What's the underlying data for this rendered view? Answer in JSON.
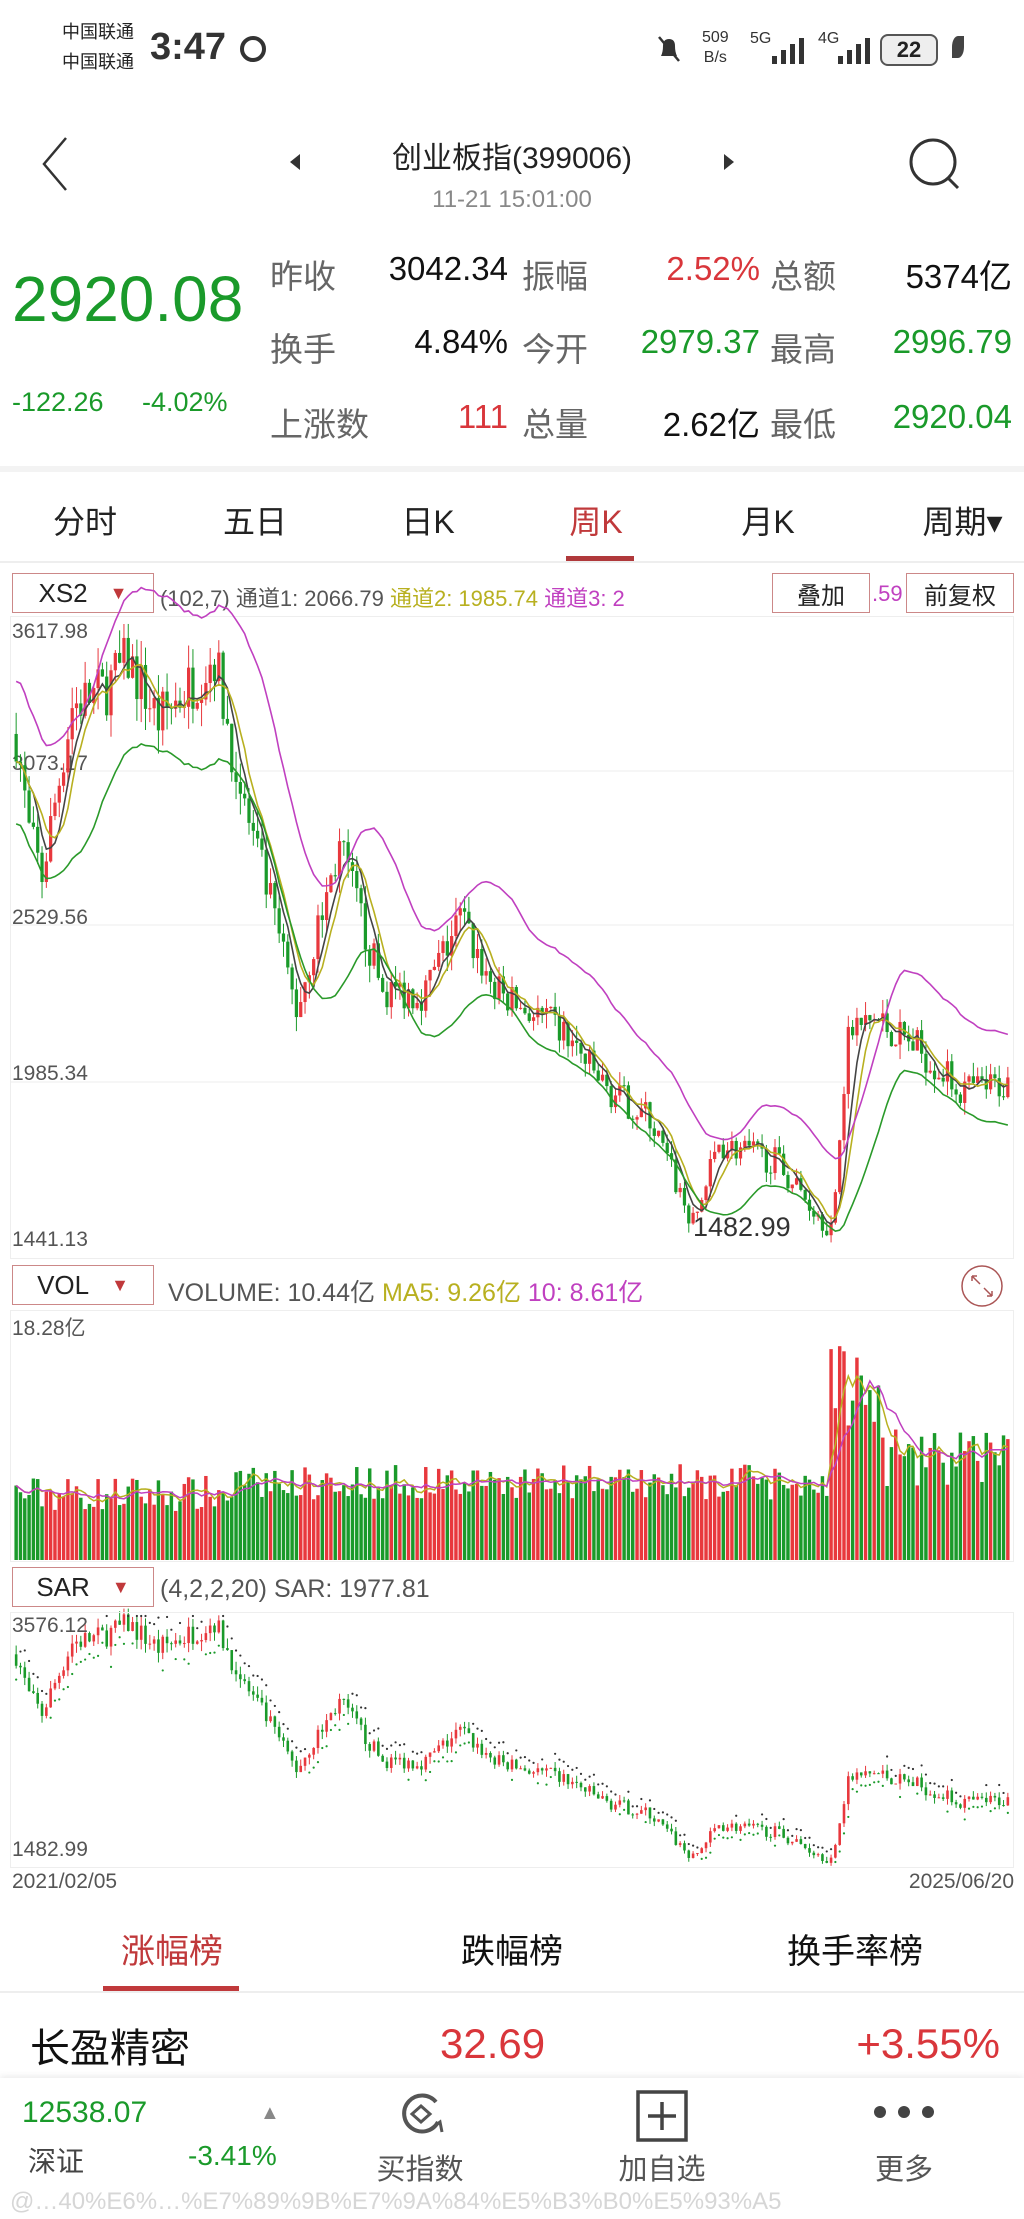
{
  "status_bar": {
    "carrier1": "中国联通",
    "carrier2": "中国联通",
    "time": "3:47",
    "net_speed": "509",
    "net_unit": "B/s",
    "sig1": "5G",
    "sig2": "4G",
    "battery": "22"
  },
  "header": {
    "title": "创业板指(399006)",
    "datetime": "11-21 15:01:00"
  },
  "quote": {
    "price": "2920.08",
    "change": "-122.26",
    "change_pct": "-4.02%",
    "rows": [
      [
        {
          "label": "昨收",
          "value": "3042.34",
          "color": "black"
        },
        {
          "label": "振幅",
          "value": "2.52%",
          "color": "red"
        },
        {
          "label": "总额",
          "value": "5374亿",
          "color": "black"
        }
      ],
      [
        {
          "label": "换手",
          "value": "4.84%",
          "color": "black"
        },
        {
          "label": "今开",
          "value": "2979.37",
          "color": "green"
        },
        {
          "label": "最高",
          "value": "2996.79",
          "color": "green"
        }
      ],
      [
        {
          "label": "上涨数",
          "value": "111",
          "color": "red"
        },
        {
          "label": "总量",
          "value": "2.62亿",
          "color": "black"
        },
        {
          "label": "最低",
          "value": "2920.04",
          "color": "green"
        }
      ]
    ]
  },
  "period_tabs": [
    "分时",
    "五日",
    "日K",
    "周K",
    "月K",
    "周期▾"
  ],
  "active_period": "周K",
  "main_indicator": {
    "name": "XS2",
    "params": "(102,7)",
    "ch1": "通道1: 2066.79",
    "ch2": "通道2: 1985.74",
    "ch3": "通道3: 2",
    "ch3_tail": ".59",
    "overlay_btn": "叠加",
    "adjust_btn": "前复权"
  },
  "colors": {
    "up": "#e8383d",
    "down": "#1a9a2a",
    "accent": "#c0393b",
    "ch1": "#444444",
    "ch2": "#b8b020",
    "ch3": "#c040c0",
    "ch4": "#2a9a2a"
  },
  "chart_data": {
    "type": "candlestick",
    "y_ticks": [
      "3617.98",
      "3073.17",
      "2529.56",
      "1985.34",
      "1441.13"
    ],
    "ylim": [
      1441.13,
      3617.98
    ],
    "low_annotation": "1482.99",
    "x_start": "2021/02/05",
    "x_end": "2025/06/20",
    "close_path": [
      [
        0,
        3250
      ],
      [
        3,
        2900
      ],
      [
        6,
        2747
      ],
      [
        13,
        3350
      ],
      [
        20,
        3400
      ],
      [
        26,
        3510
      ],
      [
        33,
        3300
      ],
      [
        39,
        3400
      ],
      [
        46,
        3530
      ],
      [
        52,
        3050
      ],
      [
        59,
        2650
      ],
      [
        65,
        2270
      ],
      [
        75,
        2850
      ],
      [
        85,
        2340
      ],
      [
        95,
        2340
      ],
      [
        103,
        2600
      ],
      [
        111,
        2340
      ],
      [
        127,
        2190
      ],
      [
        137,
        1990
      ],
      [
        147,
        1890
      ],
      [
        157,
        1510
      ],
      [
        163,
        1800
      ],
      [
        176,
        1740
      ],
      [
        189,
        1500
      ],
      [
        193,
        2190
      ],
      [
        199,
        2240
      ],
      [
        209,
        2140
      ],
      [
        219,
        1990
      ],
      [
        230,
        2010
      ]
    ]
  },
  "volume": {
    "name": "VOL",
    "volume": "VOLUME: 10.44亿",
    "ma5": "MA5: 9.26亿",
    "ma10": "10: 8.61亿",
    "max_label": "18.28亿"
  },
  "sar": {
    "name": "SAR",
    "params": "(4,2,2,20)",
    "value": "SAR: 1977.81",
    "max_label": "3576.12",
    "min_label": "1482.99"
  },
  "rank_tabs": [
    "涨幅榜",
    "跌幅榜",
    "换手率榜"
  ],
  "rank_list": [
    {
      "name": "长盈精密",
      "price": "32.69",
      "change": "+3.55%"
    }
  ],
  "bottom_bar": {
    "index_value": "12538.07",
    "index_name": "深证",
    "index_change": "-3.41%",
    "buy": "买指数",
    "add": "加自选",
    "more": "更多",
    "watermark": "@…40%E6%…%E7%89%9B%E7%9A%84%E5%B3%B0%E5%93%A5"
  }
}
